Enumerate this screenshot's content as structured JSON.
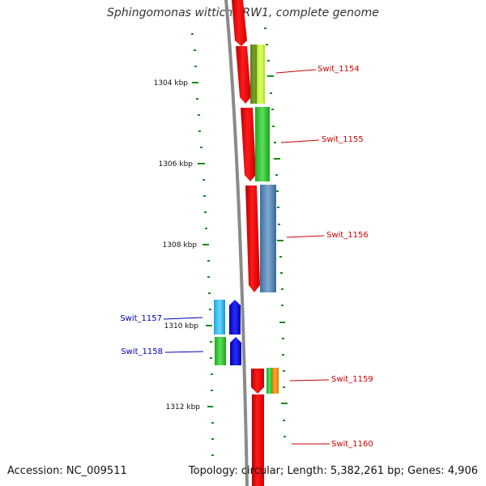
{
  "title": "Sphingomonas wittichii RW1, complete genome",
  "footer": {
    "accession": "Accession: NC_009511",
    "topology": "Topology: circular; Length: 5,382,261 bp; Genes: 4,906"
  },
  "colors": {
    "backbone": "#8a8a8a",
    "tick": "#1a8a1a",
    "forward_label": "#cc0000",
    "reverse_label": "#0000bb"
  },
  "ruler_labels": [
    {
      "label": "1304 kbp"
    },
    {
      "label": "1306 kbp"
    },
    {
      "label": "1308 kbp"
    },
    {
      "label": "1310 kbp"
    },
    {
      "label": "1312 kbp"
    }
  ],
  "gene_labels": [
    {
      "name": "Swit_1154",
      "strand": "forward"
    },
    {
      "name": "Swit_1155",
      "strand": "forward"
    },
    {
      "name": "Swit_1156",
      "strand": "forward"
    },
    {
      "name": "Swit_1157",
      "strand": "reverse"
    },
    {
      "name": "Swit_1158",
      "strand": "reverse"
    },
    {
      "name": "Swit_1159",
      "strand": "forward"
    },
    {
      "name": "Swit_1160",
      "strand": "forward"
    }
  ]
}
